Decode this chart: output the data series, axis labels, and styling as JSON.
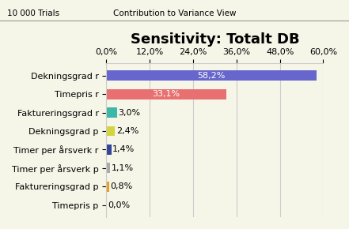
{
  "title": "Sensitivity: Totalt DB",
  "header_left": "10 000 Trials",
  "header_right": "Contribution to Variance View",
  "categories": [
    "Dekningsgrad r",
    "Timepris r",
    "Faktureringsgrad r",
    "Dekningsgrad p",
    "Timer per årsverk r",
    "Timer per årsverk p",
    "Faktureringsgrad p",
    "Timepris p"
  ],
  "values": [
    58.2,
    33.1,
    3.0,
    2.4,
    1.4,
    1.1,
    0.8,
    0.0
  ],
  "labels": [
    "58,2%",
    "33,1%",
    "3,0%",
    "2,4%",
    "1,4%",
    "1,1%",
    "0,8%",
    "0,0%"
  ],
  "bar_colors": [
    "#6666cc",
    "#e87070",
    "#3cb8a8",
    "#d4d440",
    "#334499",
    "#aaaaaa",
    "#e8a020",
    "#888888"
  ],
  "xlim": [
    0,
    60
  ],
  "xticks": [
    0,
    12,
    24,
    36,
    48,
    60
  ],
  "xtick_labels": [
    "0,0%",
    "12,0%",
    "24,0%",
    "36,0%",
    "48,0%",
    "60,0%"
  ],
  "background_color": "#f5f5e8",
  "header_bg": "#e0e0e0",
  "grid_color": "#cccccc",
  "title_fontsize": 13,
  "label_fontsize": 8,
  "tick_fontsize": 8
}
